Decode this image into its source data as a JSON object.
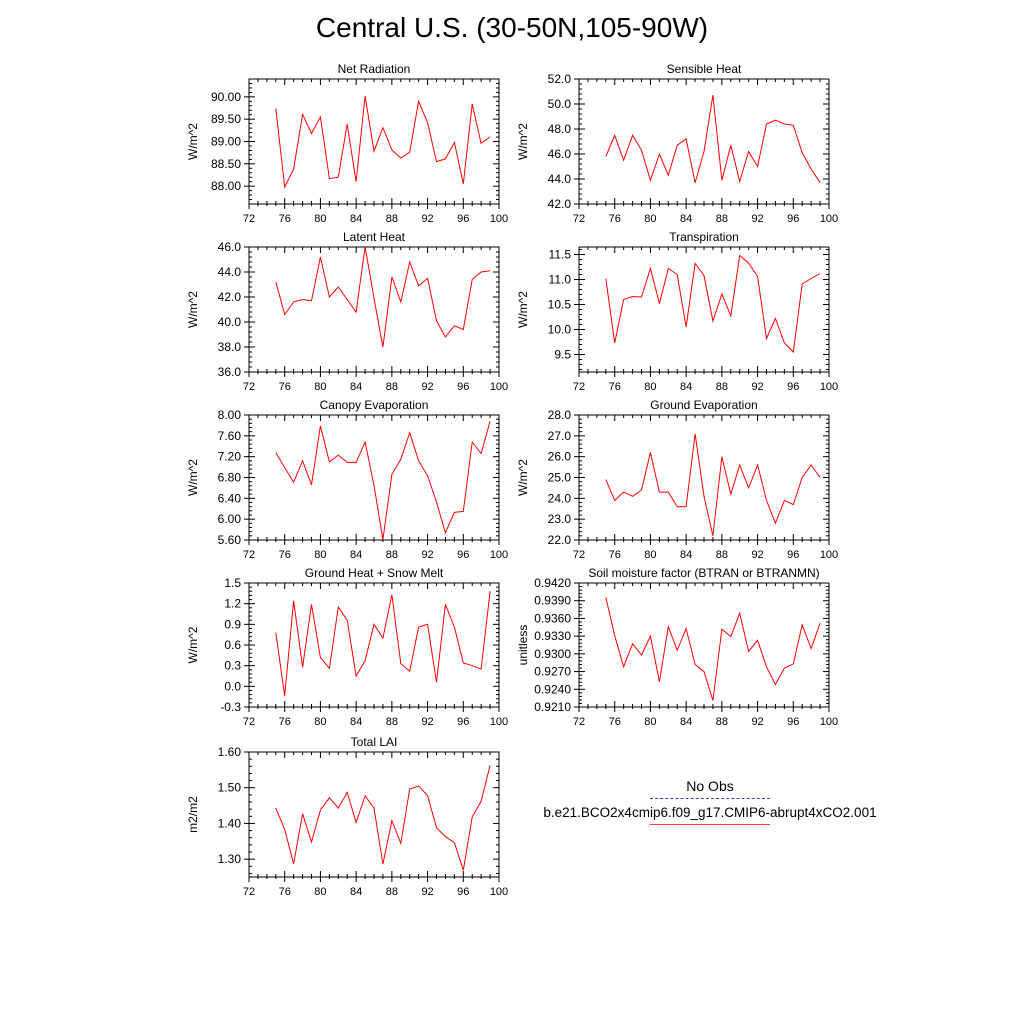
{
  "page_title": "Central U.S. (30-50N,105-90W)",
  "legend": {
    "obs_label": "No Obs",
    "model_label": "b.e21.BCO2x4cmip6.f09_g17.CMIP6-abrupt4xCO2.001",
    "obs_color": "#3b3bb5",
    "model_color": "#ff0000"
  },
  "chart_data": [
    {
      "type": "line",
      "title": "Net Radiation",
      "ylabel": "W/m^2",
      "xlim": [
        72,
        100
      ],
      "xticks": [
        "72",
        "76",
        "80",
        "84",
        "88",
        "92",
        "96",
        "100"
      ],
      "ylim": [
        87.6,
        90.4
      ],
      "yticks": [
        "88.00",
        "88.50",
        "89.00",
        "89.50",
        "90.00"
      ],
      "x": [
        75,
        76,
        77,
        78,
        79,
        80,
        81,
        82,
        83,
        84,
        85,
        86,
        87,
        88,
        89,
        90,
        91,
        92,
        93,
        94,
        95,
        96,
        97,
        98,
        99
      ],
      "series": [
        {
          "values": [
            89.74,
            87.98,
            88.38,
            89.61,
            89.18,
            89.55,
            88.17,
            88.2,
            89.39,
            88.1,
            90.02,
            88.78,
            89.31,
            88.81,
            88.63,
            88.76,
            89.9,
            89.42,
            88.55,
            88.61,
            88.98,
            88.05,
            89.84,
            88.96,
            89.1
          ]
        }
      ]
    },
    {
      "type": "line",
      "title": "Sensible Heat",
      "ylabel": "W/m^2",
      "xlim": [
        72,
        100
      ],
      "xticks": [
        "72",
        "76",
        "80",
        "84",
        "88",
        "92",
        "96",
        "100"
      ],
      "ylim": [
        42.0,
        52.0
      ],
      "yticks": [
        "42.0",
        "44.0",
        "46.0",
        "48.0",
        "50.0",
        "52.0"
      ],
      "x": [
        75,
        76,
        77,
        78,
        79,
        80,
        81,
        82,
        83,
        84,
        85,
        86,
        87,
        88,
        89,
        90,
        91,
        92,
        93,
        94,
        95,
        96,
        97,
        98,
        99
      ],
      "series": [
        {
          "values": [
            45.8,
            47.5,
            45.5,
            47.5,
            46.3,
            43.9,
            46.0,
            44.3,
            46.7,
            47.2,
            43.7,
            46.2,
            50.7,
            43.9,
            46.7,
            43.8,
            46.2,
            45.0,
            48.4,
            48.7,
            48.4,
            48.3,
            46.1,
            44.8,
            43.7
          ]
        }
      ]
    },
    {
      "type": "line",
      "title": "Latent Heat",
      "ylabel": "W/m^2",
      "xlim": [
        72,
        100
      ],
      "xticks": [
        "72",
        "76",
        "80",
        "84",
        "88",
        "92",
        "96",
        "100"
      ],
      "ylim": [
        36.0,
        46.0
      ],
      "yticks": [
        "36.0",
        "38.0",
        "40.0",
        "42.0",
        "44.0",
        "46.0"
      ],
      "x": [
        75,
        76,
        77,
        78,
        79,
        80,
        81,
        82,
        83,
        84,
        85,
        86,
        87,
        88,
        89,
        90,
        91,
        92,
        93,
        94,
        95,
        96,
        97,
        98,
        99
      ],
      "series": [
        {
          "values": [
            43.2,
            40.6,
            41.6,
            41.8,
            41.7,
            45.2,
            42.0,
            42.8,
            41.8,
            40.8,
            46.0,
            41.9,
            38.0,
            43.6,
            41.6,
            44.8,
            42.9,
            43.5,
            40.1,
            38.8,
            39.7,
            39.4,
            43.4,
            44.0,
            44.1
          ]
        }
      ]
    },
    {
      "type": "line",
      "title": "Transpiration",
      "ylabel": "W/m^2",
      "xlim": [
        72,
        100
      ],
      "xticks": [
        "72",
        "76",
        "80",
        "84",
        "88",
        "92",
        "96",
        "100"
      ],
      "ylim": [
        9.15,
        11.65
      ],
      "yticks": [
        "9.5",
        "10.0",
        "10.5",
        "11.0",
        "11.5"
      ],
      "x": [
        75,
        76,
        77,
        78,
        79,
        80,
        81,
        82,
        83,
        84,
        85,
        86,
        87,
        88,
        89,
        90,
        91,
        92,
        93,
        94,
        95,
        96,
        97,
        98,
        99
      ],
      "series": [
        {
          "values": [
            11.02,
            9.73,
            10.6,
            10.66,
            10.65,
            11.22,
            10.52,
            11.22,
            11.1,
            10.05,
            11.32,
            11.08,
            10.17,
            10.71,
            10.27,
            11.48,
            11.33,
            11.06,
            9.82,
            10.22,
            9.73,
            9.55,
            10.91,
            11.02,
            11.12
          ]
        }
      ]
    },
    {
      "type": "line",
      "title": "Canopy Evaporation",
      "ylabel": "W/m^2",
      "xlim": [
        72,
        100
      ],
      "xticks": [
        "72",
        "76",
        "80",
        "84",
        "88",
        "92",
        "96",
        "100"
      ],
      "ylim": [
        5.6,
        8.0
      ],
      "yticks": [
        "5.60",
        "6.00",
        "6.40",
        "6.80",
        "7.20",
        "7.60",
        "8.00"
      ],
      "x": [
        75,
        76,
        77,
        78,
        79,
        80,
        81,
        82,
        83,
        84,
        85,
        86,
        87,
        88,
        89,
        90,
        91,
        92,
        93,
        94,
        95,
        96,
        97,
        98,
        99
      ],
      "series": [
        {
          "values": [
            7.28,
            6.99,
            6.71,
            7.12,
            6.66,
            7.79,
            7.1,
            7.23,
            7.09,
            7.09,
            7.48,
            6.65,
            5.61,
            6.86,
            7.15,
            7.66,
            7.12,
            6.83,
            6.33,
            5.74,
            6.13,
            6.15,
            7.48,
            7.26,
            7.88
          ]
        }
      ]
    },
    {
      "type": "line",
      "title": "Ground Evaporation",
      "ylabel": "W/m^2",
      "xlim": [
        72,
        100
      ],
      "xticks": [
        "72",
        "76",
        "80",
        "84",
        "88",
        "92",
        "96",
        "100"
      ],
      "ylim": [
        22.0,
        28.0
      ],
      "yticks": [
        "22.0",
        "23.0",
        "24.0",
        "25.0",
        "26.0",
        "27.0",
        "28.0"
      ],
      "x": [
        75,
        76,
        77,
        78,
        79,
        80,
        81,
        82,
        83,
        84,
        85,
        86,
        87,
        88,
        89,
        90,
        91,
        92,
        93,
        94,
        95,
        96,
        97,
        98,
        99
      ],
      "series": [
        {
          "values": [
            24.9,
            23.9,
            24.3,
            24.1,
            24.4,
            26.2,
            24.3,
            24.3,
            23.6,
            23.6,
            27.1,
            24.1,
            22.2,
            26.0,
            24.2,
            25.6,
            24.5,
            25.6,
            23.9,
            22.8,
            23.9,
            23.7,
            25.0,
            25.6,
            25.0
          ]
        }
      ]
    },
    {
      "type": "line",
      "title": "Ground Heat + Snow Melt",
      "ylabel": "W/m^2",
      "xlim": [
        72,
        100
      ],
      "xticks": [
        "72",
        "76",
        "80",
        "84",
        "88",
        "92",
        "96",
        "100"
      ],
      "ylim": [
        -0.3,
        1.5
      ],
      "yticks": [
        "-0.3",
        "0.0",
        "0.3",
        "0.6",
        "0.9",
        "1.2",
        "1.5"
      ],
      "x": [
        75,
        76,
        77,
        78,
        79,
        80,
        81,
        82,
        83,
        84,
        85,
        86,
        87,
        88,
        89,
        90,
        91,
        92,
        93,
        94,
        95,
        96,
        97,
        98,
        99
      ],
      "series": [
        {
          "values": [
            0.78,
            -0.14,
            1.24,
            0.28,
            1.19,
            0.42,
            0.26,
            1.15,
            0.96,
            0.15,
            0.37,
            0.9,
            0.7,
            1.33,
            0.33,
            0.22,
            0.86,
            0.9,
            0.06,
            1.19,
            0.86,
            0.34,
            0.3,
            0.25,
            1.38
          ]
        }
      ]
    },
    {
      "type": "line",
      "title": "Soil moisture factor (BTRAN or BTRANMN)",
      "ylabel": "unitless",
      "xlim": [
        72,
        100
      ],
      "xticks": [
        "72",
        "76",
        "80",
        "84",
        "88",
        "92",
        "96",
        "100"
      ],
      "ylim": [
        0.921,
        0.942
      ],
      "yticks": [
        "0.9210",
        "0.9240",
        "0.9270",
        "0.9300",
        "0.9330",
        "0.9360",
        "0.9390",
        "0.9420"
      ],
      "x": [
        75,
        76,
        77,
        78,
        79,
        80,
        81,
        82,
        83,
        84,
        85,
        86,
        87,
        88,
        89,
        90,
        91,
        92,
        93,
        94,
        95,
        96,
        97,
        98,
        99
      ],
      "series": [
        {
          "values": [
            0.9396,
            0.9331,
            0.9278,
            0.9317,
            0.9298,
            0.933,
            0.9253,
            0.9346,
            0.9306,
            0.9343,
            0.9282,
            0.927,
            0.9221,
            0.9342,
            0.9329,
            0.9369,
            0.9304,
            0.9323,
            0.9278,
            0.9248,
            0.9276,
            0.9283,
            0.9349,
            0.9309,
            0.9352
          ]
        }
      ]
    },
    {
      "type": "line",
      "title": "Total LAI",
      "ylabel": "m2/m2",
      "xlim": [
        72,
        100
      ],
      "xticks": [
        "72",
        "76",
        "80",
        "84",
        "88",
        "92",
        "96",
        "100"
      ],
      "ylim": [
        1.25,
        1.6
      ],
      "yticks": [
        "1.30",
        "1.40",
        "1.50",
        "1.60"
      ],
      "x": [
        75,
        76,
        77,
        78,
        79,
        80,
        81,
        82,
        83,
        84,
        85,
        86,
        87,
        88,
        89,
        90,
        91,
        92,
        93,
        94,
        95,
        96,
        97,
        98,
        99
      ],
      "series": [
        {
          "values": [
            1.443,
            1.383,
            1.287,
            1.427,
            1.348,
            1.437,
            1.472,
            1.443,
            1.487,
            1.403,
            1.477,
            1.443,
            1.286,
            1.408,
            1.344,
            1.496,
            1.505,
            1.478,
            1.388,
            1.363,
            1.346,
            1.269,
            1.418,
            1.462,
            1.563
          ]
        }
      ]
    }
  ]
}
